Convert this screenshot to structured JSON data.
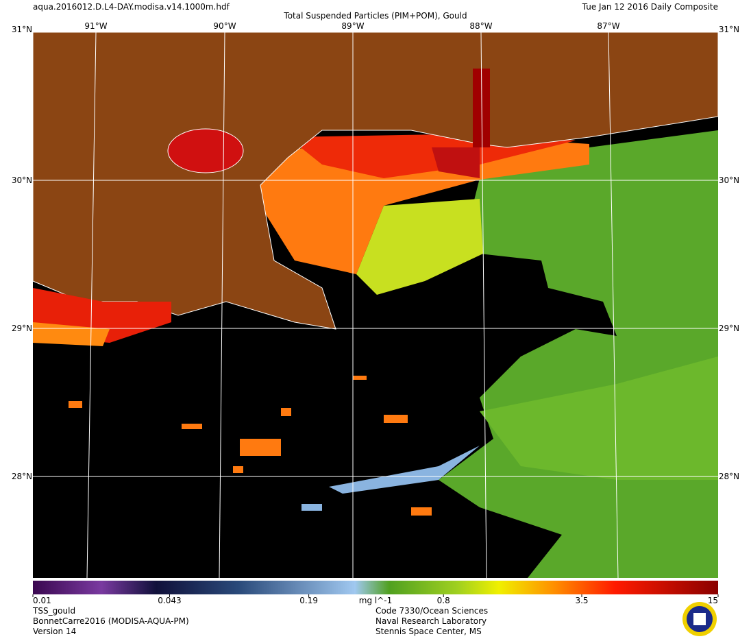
{
  "header": {
    "filename": "aqua.2016012.D.L4-DAY.modisa.v14.1000m.hdf",
    "title": "Total Suspended Particles (PIM+POM), Gould",
    "date": "Tue Jan 12 2016 Daily Composite"
  },
  "map": {
    "lat_labels": [
      "31°N",
      "30°N",
      "29°N",
      "28°N"
    ],
    "lon_labels": [
      "91°W",
      "90°W",
      "89°W",
      "88°W",
      "87°W"
    ]
  },
  "colorbar": {
    "scale": "log",
    "lim": [
      0.01,
      15
    ],
    "ticks": [
      0.01,
      0.043,
      0.19,
      0.8,
      3.5,
      15
    ],
    "unit": "mg l^-1"
  },
  "footer": {
    "left": [
      "TSS_gould",
      "BonnetCarre2016 (MODISA-AQUA-PM)",
      "Version 14"
    ],
    "right": [
      "Code 7330/Ocean Sciences",
      "Naval Research Laboratory",
      "Stennis Space Center, MS"
    ]
  }
}
